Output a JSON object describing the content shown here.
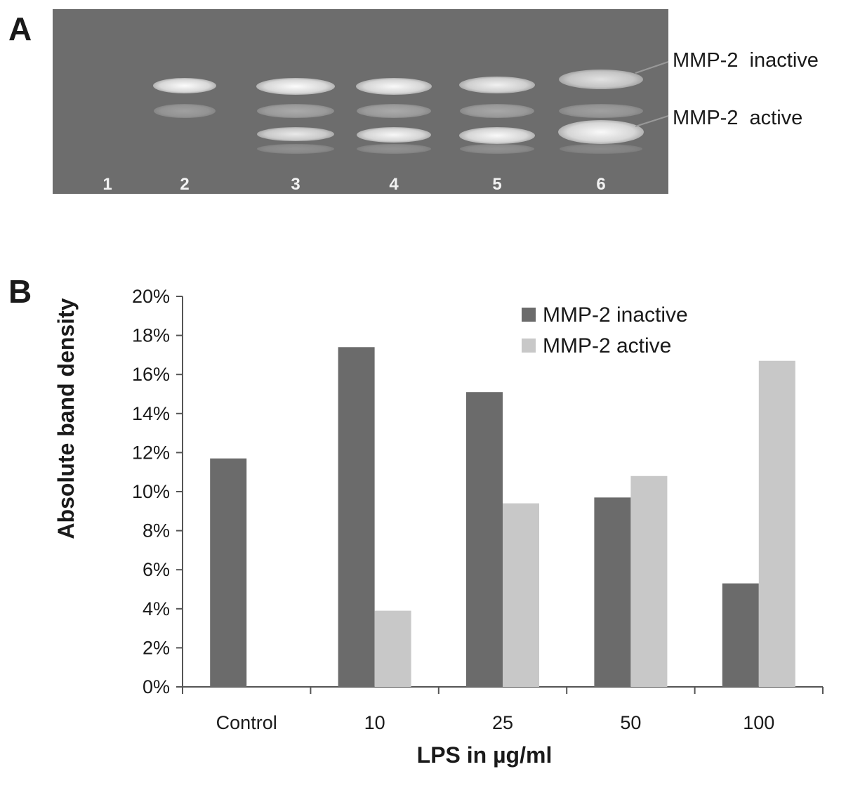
{
  "panel_a": {
    "letter": "A",
    "lane_numbers": [
      "1",
      "2",
      "3",
      "4",
      "5",
      "6"
    ],
    "band_labels": {
      "inactive": "MMP-2  inactive",
      "active": "MMP-2  active"
    }
  },
  "panel_b": {
    "letter": "B"
  },
  "colors": {
    "inactive": "#6b6b6b",
    "active": "#c8c8c8",
    "gel_background": "#6d6d6d"
  },
  "chart_data": {
    "type": "bar",
    "categories": [
      "Control",
      "10",
      "25",
      "50",
      "100"
    ],
    "series": [
      {
        "name": "MMP-2 inactive",
        "values": [
          11.7,
          17.4,
          15.1,
          9.7,
          5.3
        ]
      },
      {
        "name": "MMP-2 active",
        "values": [
          0,
          3.9,
          9.4,
          10.8,
          16.7
        ]
      }
    ],
    "xlabel": "LPS in µg/ml",
    "ylabel": "Absolute band density",
    "ylim": [
      0,
      20
    ],
    "y_ticks": [
      "0%",
      "2%",
      "4%",
      "6%",
      "8%",
      "10%",
      "12%",
      "14%",
      "16%",
      "18%",
      "20%"
    ],
    "grid": false,
    "legend_position": "top-right"
  }
}
